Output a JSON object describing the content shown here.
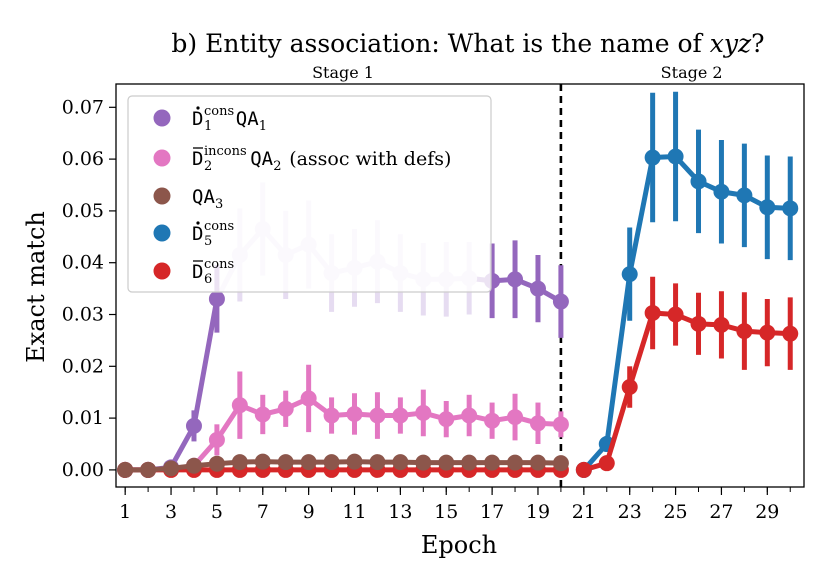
{
  "chart_data": {
    "type": "line",
    "title": "b) Entity association: What is the name of xyz?",
    "title_parts": {
      "prefix": "b) Entity association: What is the name of ",
      "var": "xyz",
      "suffix": "?"
    },
    "xlabel": "Epoch",
    "ylabel": "Exact match",
    "xlim": [
      0.6,
      30.6
    ],
    "ylim": [
      -0.0033,
      0.0745
    ],
    "xticks": [
      1,
      3,
      5,
      7,
      9,
      11,
      13,
      15,
      17,
      19,
      21,
      23,
      25,
      27,
      29
    ],
    "yticks": [
      0.0,
      0.01,
      0.02,
      0.03,
      0.04,
      0.05,
      0.06,
      0.07
    ],
    "ytick_labels": [
      "0.00",
      "0.01",
      "0.02",
      "0.03",
      "0.04",
      "0.05",
      "0.06",
      "0.07"
    ],
    "stage_divider_x": 20,
    "stage_labels": [
      {
        "text": "Stage 1",
        "x": 10.5
      },
      {
        "text": "Stage 2",
        "x": 25.7
      }
    ],
    "legend_placement": "top-left",
    "series": [
      {
        "name": "D1 cons QA1",
        "legend_label": {
          "base": "D",
          "accent": "dot",
          "sub": "1",
          "sup": "cons",
          "suffix": "QA",
          "suffix_sub": "1",
          "text": ""
        },
        "color": "#9467bd",
        "faded_color": "#e6dcf1",
        "fade_until_epoch": 16,
        "x": [
          1,
          2,
          3,
          4,
          5,
          6,
          7,
          8,
          9,
          10,
          11,
          12,
          13,
          14,
          15,
          16,
          17,
          18,
          19,
          20
        ],
        "y": [
          0.0,
          0.0,
          0.0005,
          0.0085,
          0.033,
          0.0415,
          0.0465,
          0.0415,
          0.0435,
          0.038,
          0.039,
          0.0402,
          0.038,
          0.0368,
          0.0368,
          0.037,
          0.0365,
          0.0368,
          0.035,
          0.0325
        ],
        "err": [
          0.0,
          0.0,
          0.0008,
          0.003,
          0.0065,
          0.009,
          0.009,
          0.0085,
          0.0085,
          0.0075,
          0.0075,
          0.008,
          0.0075,
          0.007,
          0.0072,
          0.007,
          0.0072,
          0.0075,
          0.0065,
          0.007
        ]
      },
      {
        "name": "D2 incons QA2 (assoc with defs)",
        "legend_label": {
          "base": "D",
          "accent": "bar",
          "sub": "2",
          "sup": "incons",
          "suffix": "QA",
          "suffix_sub": "2",
          "text": "(assoc with defs)"
        },
        "color": "#e377c2",
        "x": [
          1,
          2,
          3,
          4,
          5,
          6,
          7,
          8,
          9,
          10,
          11,
          12,
          13,
          14,
          15,
          16,
          17,
          18,
          19,
          20
        ],
        "y": [
          0.0,
          0.0,
          0.0002,
          0.0008,
          0.0058,
          0.0125,
          0.0107,
          0.0118,
          0.0138,
          0.0105,
          0.0108,
          0.0105,
          0.0105,
          0.011,
          0.0098,
          0.0105,
          0.0095,
          0.0102,
          0.009,
          0.0088
        ],
        "err": [
          0.0,
          0.0,
          0.0004,
          0.0012,
          0.003,
          0.0065,
          0.0038,
          0.0035,
          0.0065,
          0.0035,
          0.004,
          0.0045,
          0.0035,
          0.0045,
          0.0035,
          0.004,
          0.0035,
          0.0045,
          0.004,
          0.0025
        ]
      },
      {
        "name": "QA3",
        "legend_label": {
          "base": "",
          "accent": "none",
          "sub": "",
          "sup": "",
          "suffix": "QA",
          "suffix_sub": "3",
          "text": ""
        },
        "color": "#8c564b",
        "x": [
          1,
          2,
          3,
          4,
          5,
          6,
          7,
          8,
          9,
          10,
          11,
          12,
          13,
          14,
          15,
          16,
          17,
          18,
          19,
          20
        ],
        "y": [
          0.0,
          0.0,
          0.0003,
          0.0008,
          0.0012,
          0.0015,
          0.0016,
          0.0015,
          0.0015,
          0.0015,
          0.0016,
          0.0015,
          0.0015,
          0.0014,
          0.0014,
          0.0014,
          0.0014,
          0.0014,
          0.0014,
          0.0013
        ],
        "err": [
          0.0,
          0.0,
          0.0003,
          0.0005,
          0.0005,
          0.0005,
          0.0005,
          0.0005,
          0.0005,
          0.0005,
          0.0005,
          0.0005,
          0.0005,
          0.0005,
          0.0005,
          0.0005,
          0.0005,
          0.0005,
          0.0005,
          0.0005
        ]
      },
      {
        "name": "D5 cons",
        "legend_label": {
          "base": "D",
          "accent": "dot",
          "sub": "5",
          "sup": "cons",
          "suffix": "",
          "suffix_sub": "",
          "text": ""
        },
        "color": "#1f77b4",
        "x": [
          21,
          22,
          23,
          24,
          25,
          26,
          27,
          28,
          29,
          30
        ],
        "y": [
          0.0,
          0.005,
          0.0378,
          0.0603,
          0.0605,
          0.0557,
          0.0537,
          0.053,
          0.0507,
          0.0505
        ],
        "err": [
          0.0,
          0.0015,
          0.009,
          0.0125,
          0.0125,
          0.01,
          0.01,
          0.01,
          0.01,
          0.01
        ]
      },
      {
        "name": "D6 cons",
        "legend_label": {
          "base": "D",
          "accent": "bar",
          "sub": "6",
          "sup": "cons",
          "suffix": "",
          "suffix_sub": "",
          "text": ""
        },
        "color": "#d62728",
        "x": [
          21,
          22,
          23,
          24,
          25,
          26,
          27,
          28,
          29,
          30
        ],
        "y": [
          0.0,
          0.0013,
          0.016,
          0.0303,
          0.03,
          0.0282,
          0.028,
          0.0268,
          0.0265,
          0.0263
        ],
        "err": [
          0.0,
          0.0008,
          0.004,
          0.007,
          0.006,
          0.006,
          0.0065,
          0.0075,
          0.0065,
          0.007
        ]
      }
    ],
    "stage1_baseline_series": {
      "name": "D6 cons (stage 1)",
      "color": "#d62728",
      "x": [
        1,
        2,
        3,
        4,
        5,
        6,
        7,
        8,
        9,
        10,
        11,
        12,
        13,
        14,
        15,
        16,
        17,
        18,
        19,
        20
      ],
      "y": [
        0.0,
        0.0,
        0.0,
        0.0,
        0.0,
        0.0,
        0.0,
        0.0,
        0.0,
        0.0,
        0.0,
        0.0,
        0.0,
        0.0,
        0.0,
        0.0,
        0.0,
        0.0,
        0.0,
        0.0
      ]
    }
  }
}
